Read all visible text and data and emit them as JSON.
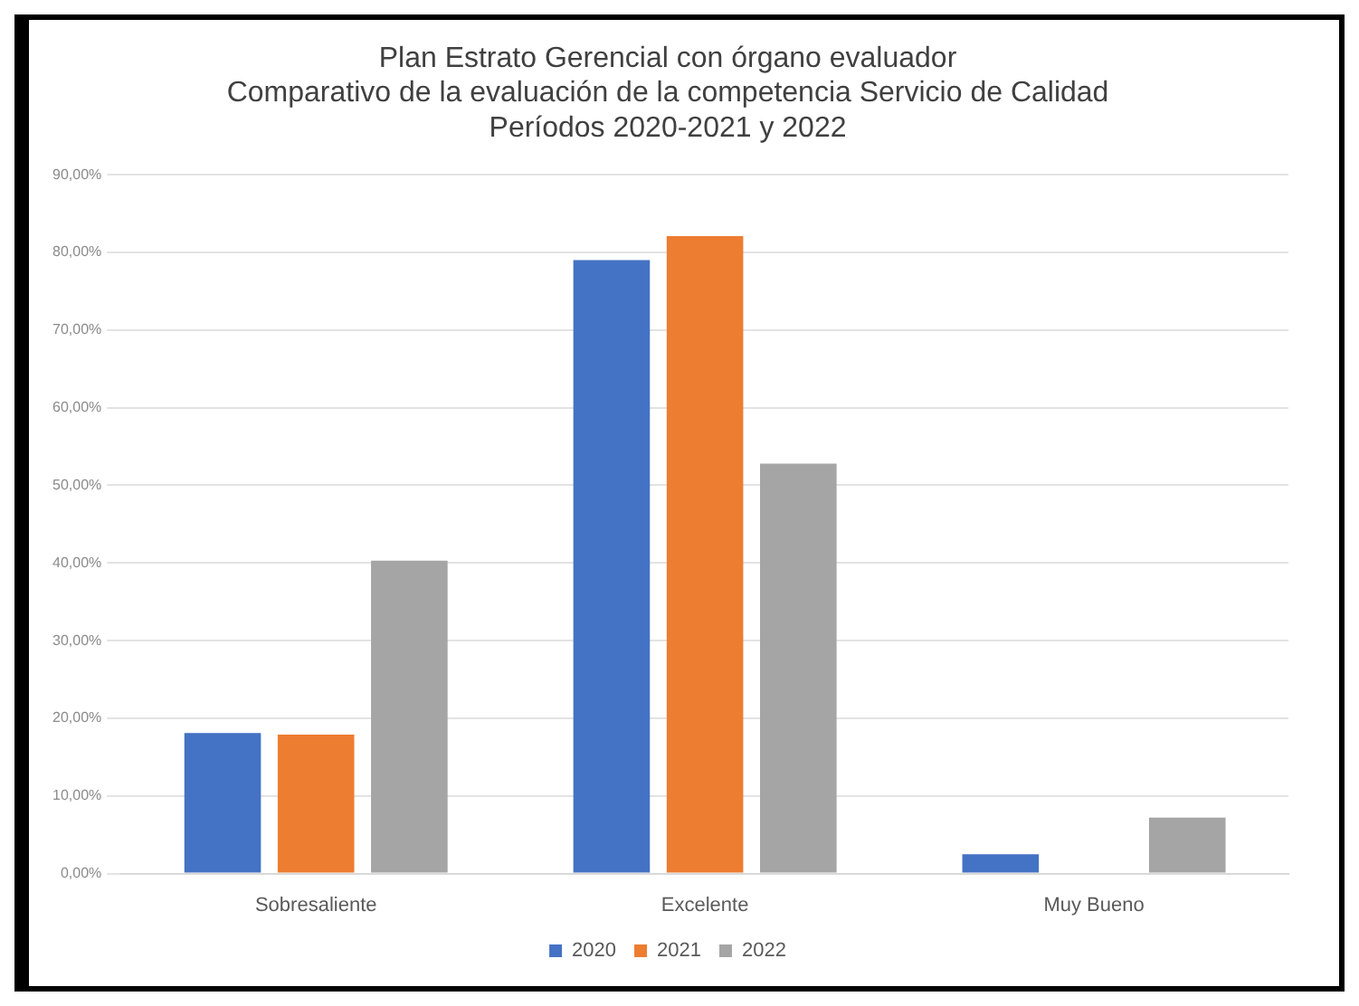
{
  "chart_data": {
    "type": "bar",
    "title": "Plan Estrato Gerencial con órgano evaluador",
    "subtitle": "Comparativo de la evaluación de la competencia Servicio de Calidad\nPeríodos 2020-2021 y 2022",
    "categories": [
      "Sobresaliente",
      "Excelente",
      "Muy Bueno"
    ],
    "series": [
      {
        "name": "2020",
        "color": "#4472c4",
        "values": [
          18.1,
          79,
          2.5
        ]
      },
      {
        "name": "2021",
        "color": "#ed7d31",
        "values": [
          17.9,
          82.1,
          0
        ]
      },
      {
        "name": "2022",
        "color": "#a5a5a5",
        "values": [
          40.3,
          52.8,
          7.2
        ]
      }
    ],
    "ylim": [
      0,
      90
    ],
    "yticks": [
      {
        "value": 0,
        "label": "0,00%"
      },
      {
        "value": 10,
        "label": "10,00%"
      },
      {
        "value": 20,
        "label": "20,00%"
      },
      {
        "value": 30,
        "label": "30,00%"
      },
      {
        "value": 40,
        "label": "40,00%"
      },
      {
        "value": 50,
        "label": "50,00%"
      },
      {
        "value": 60,
        "label": "60,00%"
      },
      {
        "value": 70,
        "label": "70,00%"
      },
      {
        "value": 80,
        "label": "80,00%"
      },
      {
        "value": 90,
        "label": "90,00%"
      }
    ],
    "grid": "y",
    "legend": "bottom"
  }
}
